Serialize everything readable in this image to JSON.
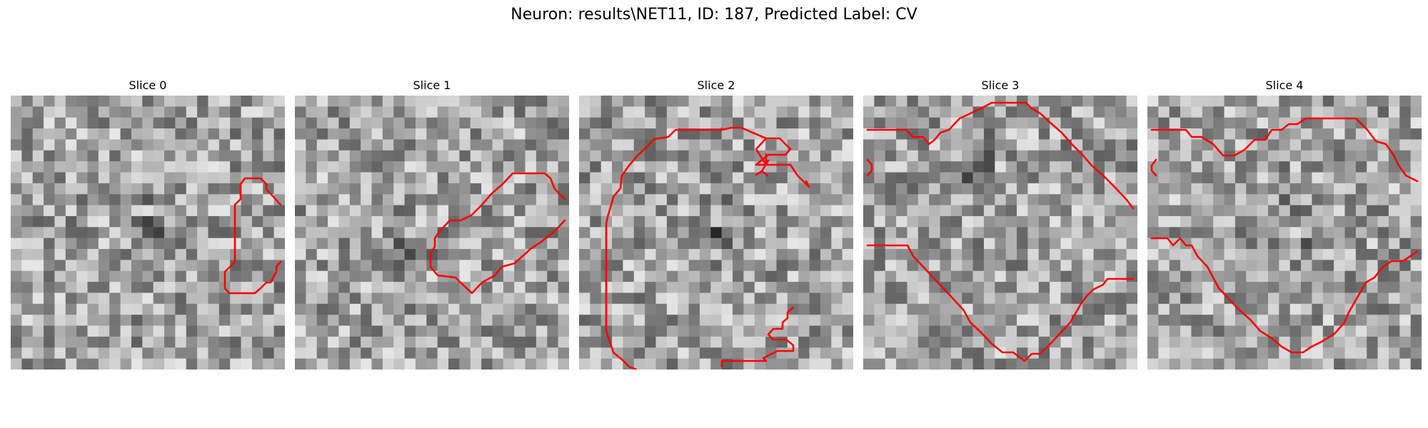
{
  "figure": {
    "title": "Neuron: results\\NET11, ID: 187, Predicted Label: CV",
    "colors": {
      "background": "#ffffff",
      "contour": "#ff0000",
      "colormap": "grayscale"
    },
    "grid_size": 25,
    "panels": [
      {
        "label": "Slice 0"
      },
      {
        "label": "Slice 1"
      },
      {
        "label": "Slice 2"
      },
      {
        "label": "Slice 3"
      },
      {
        "label": "Slice 4"
      }
    ]
  }
}
